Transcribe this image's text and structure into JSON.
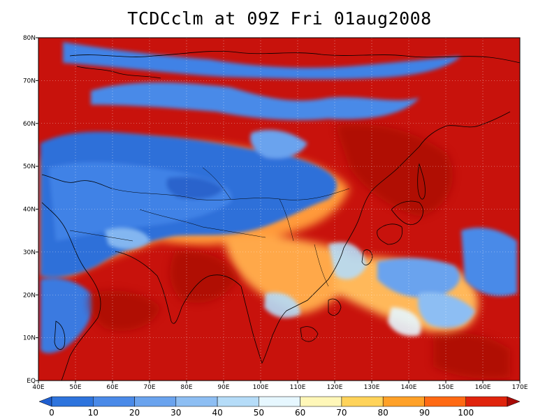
{
  "title": "TCDCclm at 09Z Fri 01aug2008",
  "map": {
    "lon_labels": [
      "40E",
      "50E",
      "60E",
      "70E",
      "80E",
      "90E",
      "100E",
      "110E",
      "120E",
      "130E",
      "140E",
      "150E",
      "160E",
      "170E"
    ],
    "lat_labels": [
      "EQ",
      "10N",
      "20N",
      "30N",
      "40N",
      "50N",
      "60N",
      "70N",
      "80N"
    ],
    "lon_range": [
      40,
      170
    ],
    "lat_range": [
      0,
      80
    ],
    "grid": "dotted"
  },
  "colorbar": {
    "labels": [
      "0",
      "10",
      "20",
      "30",
      "40",
      "50",
      "60",
      "70",
      "80",
      "90",
      "100"
    ],
    "colors": [
      "#1f5fd0",
      "#2e74dd",
      "#4a8ae8",
      "#6aa3ee",
      "#8dbef3",
      "#b5dcf8",
      "#e6f7ff",
      "#fff7b8",
      "#ffd35a",
      "#ffa128",
      "#ff6a14",
      "#e0240c",
      "#a80a06"
    ]
  },
  "colors": {
    "ocean_cloud": "#c8120c",
    "clear_land": "#2f6fd9"
  }
}
